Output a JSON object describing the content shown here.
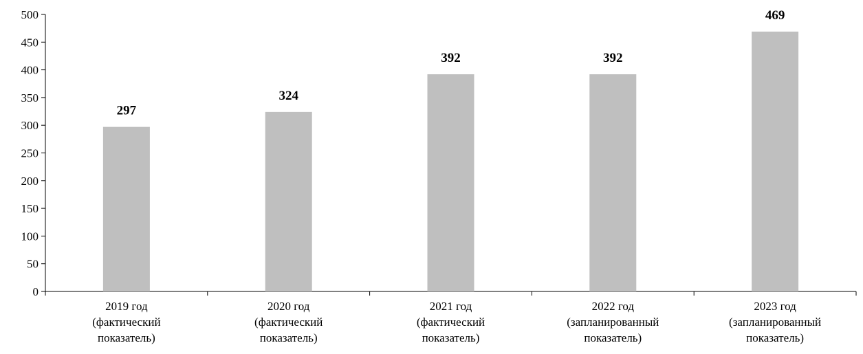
{
  "chart_data": {
    "type": "bar",
    "title": "",
    "xlabel": "",
    "ylabel": "",
    "ylim": [
      0,
      500
    ],
    "yticks": [
      0,
      50,
      100,
      150,
      200,
      250,
      300,
      350,
      400,
      450,
      500
    ],
    "grid": false,
    "legend": "none",
    "categories": [
      [
        "2019 год",
        "(фактический",
        "показатель)"
      ],
      [
        "2020 год",
        "(фактический",
        "показатель)"
      ],
      [
        "2021 год",
        "(фактический",
        "показатель)"
      ],
      [
        "2022 год",
        "(запланированный",
        "показатель)"
      ],
      [
        "2023 год",
        "(запланированный",
        "показатель)"
      ]
    ],
    "values": [
      297,
      324,
      392,
      392,
      469
    ],
    "data_labels": [
      "297",
      "324",
      "392",
      "392",
      "469"
    ],
    "colors": {
      "bar": "#bfbfbf",
      "axis": "#000000",
      "text": "#000000"
    }
  }
}
